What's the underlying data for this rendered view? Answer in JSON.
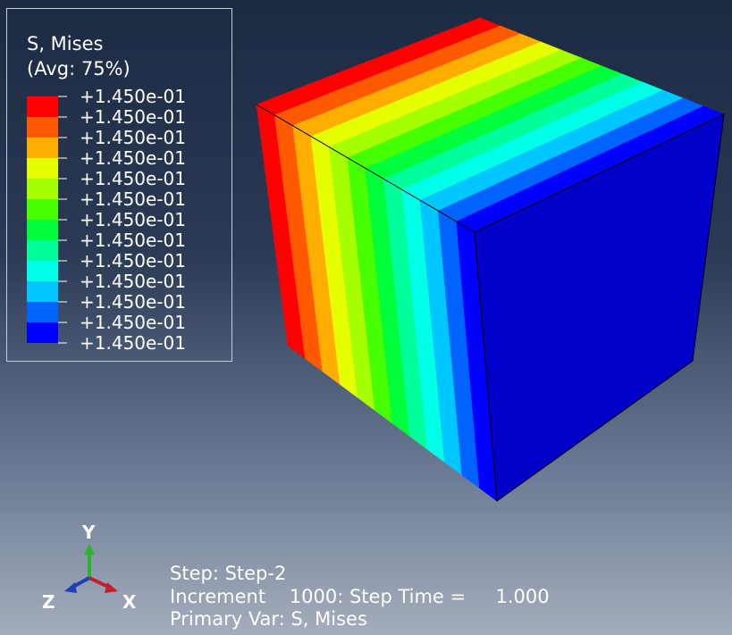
{
  "legend": {
    "title": "S, Mises",
    "subtitle": "(Avg: 75%)",
    "labels": [
      "+1.450e-01",
      "+1.450e-01",
      "+1.450e-01",
      "+1.450e-01",
      "+1.450e-01",
      "+1.450e-01",
      "+1.450e-01",
      "+1.450e-01",
      "+1.450e-01",
      "+1.450e-01",
      "+1.450e-01",
      "+1.450e-01",
      "+1.450e-01"
    ],
    "colors": [
      "#ff0000",
      "#ff5a00",
      "#ffae00",
      "#e6ff00",
      "#a6ff00",
      "#46ff00",
      "#00ff3a",
      "#00ff9c",
      "#00ffe6",
      "#00c6ff",
      "#0062ff",
      "#0000ff"
    ]
  },
  "model": {
    "band_colors": [
      "#ff0000",
      "#ff5a00",
      "#ffae00",
      "#e6ff00",
      "#a6ff00",
      "#46ff00",
      "#00ff3a",
      "#00ff9c",
      "#00ffe6",
      "#00c6ff",
      "#0062ff",
      "#0000ff"
    ],
    "right_face_color": "#0000c8"
  },
  "triad": {
    "x_label": "X",
    "y_label": "Y",
    "z_label": "Z"
  },
  "info": {
    "step": "Step: Step-2",
    "increment": "Increment    1000: Step Time =     1.000",
    "primary_var": "Primary Var: S, Mises"
  }
}
